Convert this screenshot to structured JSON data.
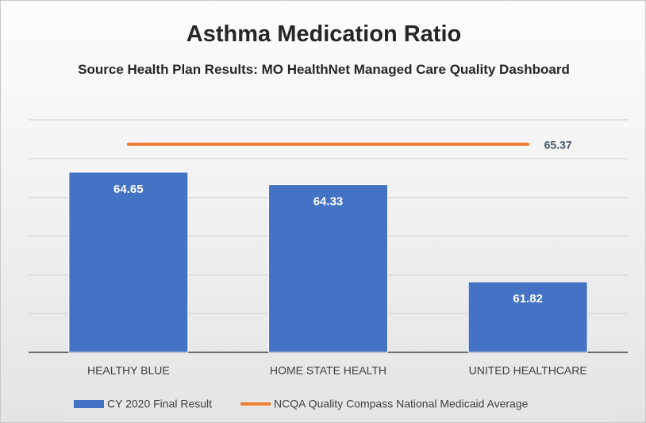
{
  "chart_data": {
    "type": "bar",
    "title": "Asthma Medication Ratio",
    "subtitle": "Source Health Plan Results:  MO HealthNet Managed Care Quality Dashboard",
    "categories": [
      "HEALTHY BLUE",
      "HOME STATE HEALTH",
      "UNITED HEALTHCARE"
    ],
    "series": [
      {
        "name": "CY 2020 Final Result",
        "type": "bar",
        "color": "#4472c4",
        "values": [
          64.65,
          64.33,
          61.82
        ]
      },
      {
        "name": "NCQA Quality Compass National Medicaid Average",
        "type": "line",
        "color": "#ed7d31",
        "values": [
          65.37,
          65.37,
          65.37
        ],
        "value_labels": [
          null,
          null,
          "65.37"
        ]
      }
    ],
    "ylim": [
      60,
      66
    ],
    "yticks": [
      60,
      61,
      62,
      63,
      64,
      65,
      66
    ],
    "grid": true,
    "legend": "bottom"
  }
}
